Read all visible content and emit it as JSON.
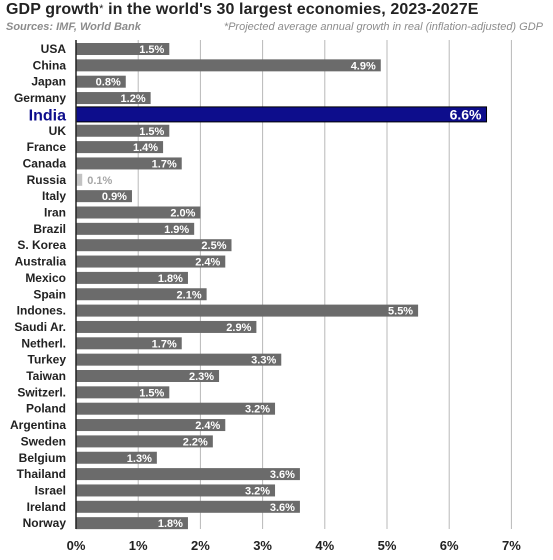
{
  "header": {
    "title": "GDP growth",
    "title_star": "*",
    "title_rest": " in the world's 30 largest economies, 2023-2027E",
    "sources": "Sources: IMF, World Bank",
    "note": "*Projected average annual growth in real (inflation-adjusted) GDP"
  },
  "chart_data": {
    "type": "bar",
    "orientation": "horizontal",
    "title": "GDP growth* in the world's 30 largest economies, 2023-2027E",
    "categories": [
      "USA",
      "China",
      "Japan",
      "Germany",
      "India",
      "UK",
      "France",
      "Canada",
      "Russia",
      "Italy",
      "Iran",
      "Brazil",
      "S. Korea",
      "Australia",
      "Mexico",
      "Spain",
      "Indones.",
      "Saudi Ar.",
      "Netherl.",
      "Turkey",
      "Taiwan",
      "Switzerl.",
      "Poland",
      "Argentina",
      "Sweden",
      "Belgium",
      "Thailand",
      "Israel",
      "Ireland",
      "Norway"
    ],
    "values": [
      1.5,
      4.9,
      0.8,
      1.2,
      6.6,
      1.5,
      1.4,
      1.7,
      0.1,
      0.9,
      2.0,
      1.9,
      2.5,
      2.4,
      1.8,
      2.1,
      5.5,
      2.9,
      1.7,
      3.3,
      2.3,
      1.5,
      3.2,
      2.4,
      2.2,
      1.3,
      3.6,
      3.2,
      3.6,
      1.8
    ],
    "value_labels": [
      "1.5%",
      "4.9%",
      "0.8%",
      "1.2%",
      "6.6%",
      "1.5%",
      "1.4%",
      "1.7%",
      "0.1%",
      "0.9%",
      "2.0%",
      "1.9%",
      "2.5%",
      "2.4%",
      "1.8%",
      "2.1%",
      "5.5%",
      "2.9%",
      "1.7%",
      "3.3%",
      "2.3%",
      "1.5%",
      "3.2%",
      "2.4%",
      "2.2%",
      "1.3%",
      "3.6%",
      "3.2%",
      "3.6%",
      "1.8%"
    ],
    "highlight": "India",
    "xlim": [
      0,
      7
    ],
    "xticks": [
      "0%",
      "1%",
      "2%",
      "3%",
      "4%",
      "5%",
      "6%",
      "7%"
    ],
    "grid": "vertical",
    "colors": {
      "bar": "#6b6b6b",
      "bar_highlight": "#0d0d8c",
      "bar_low": "#c2c2c2",
      "label": "#ffffff",
      "label_low": "#a6a6a6",
      "category": "#222222",
      "category_highlight": "#0d0d8c",
      "grid": "#b8b8b8",
      "axis": "#222222"
    }
  }
}
